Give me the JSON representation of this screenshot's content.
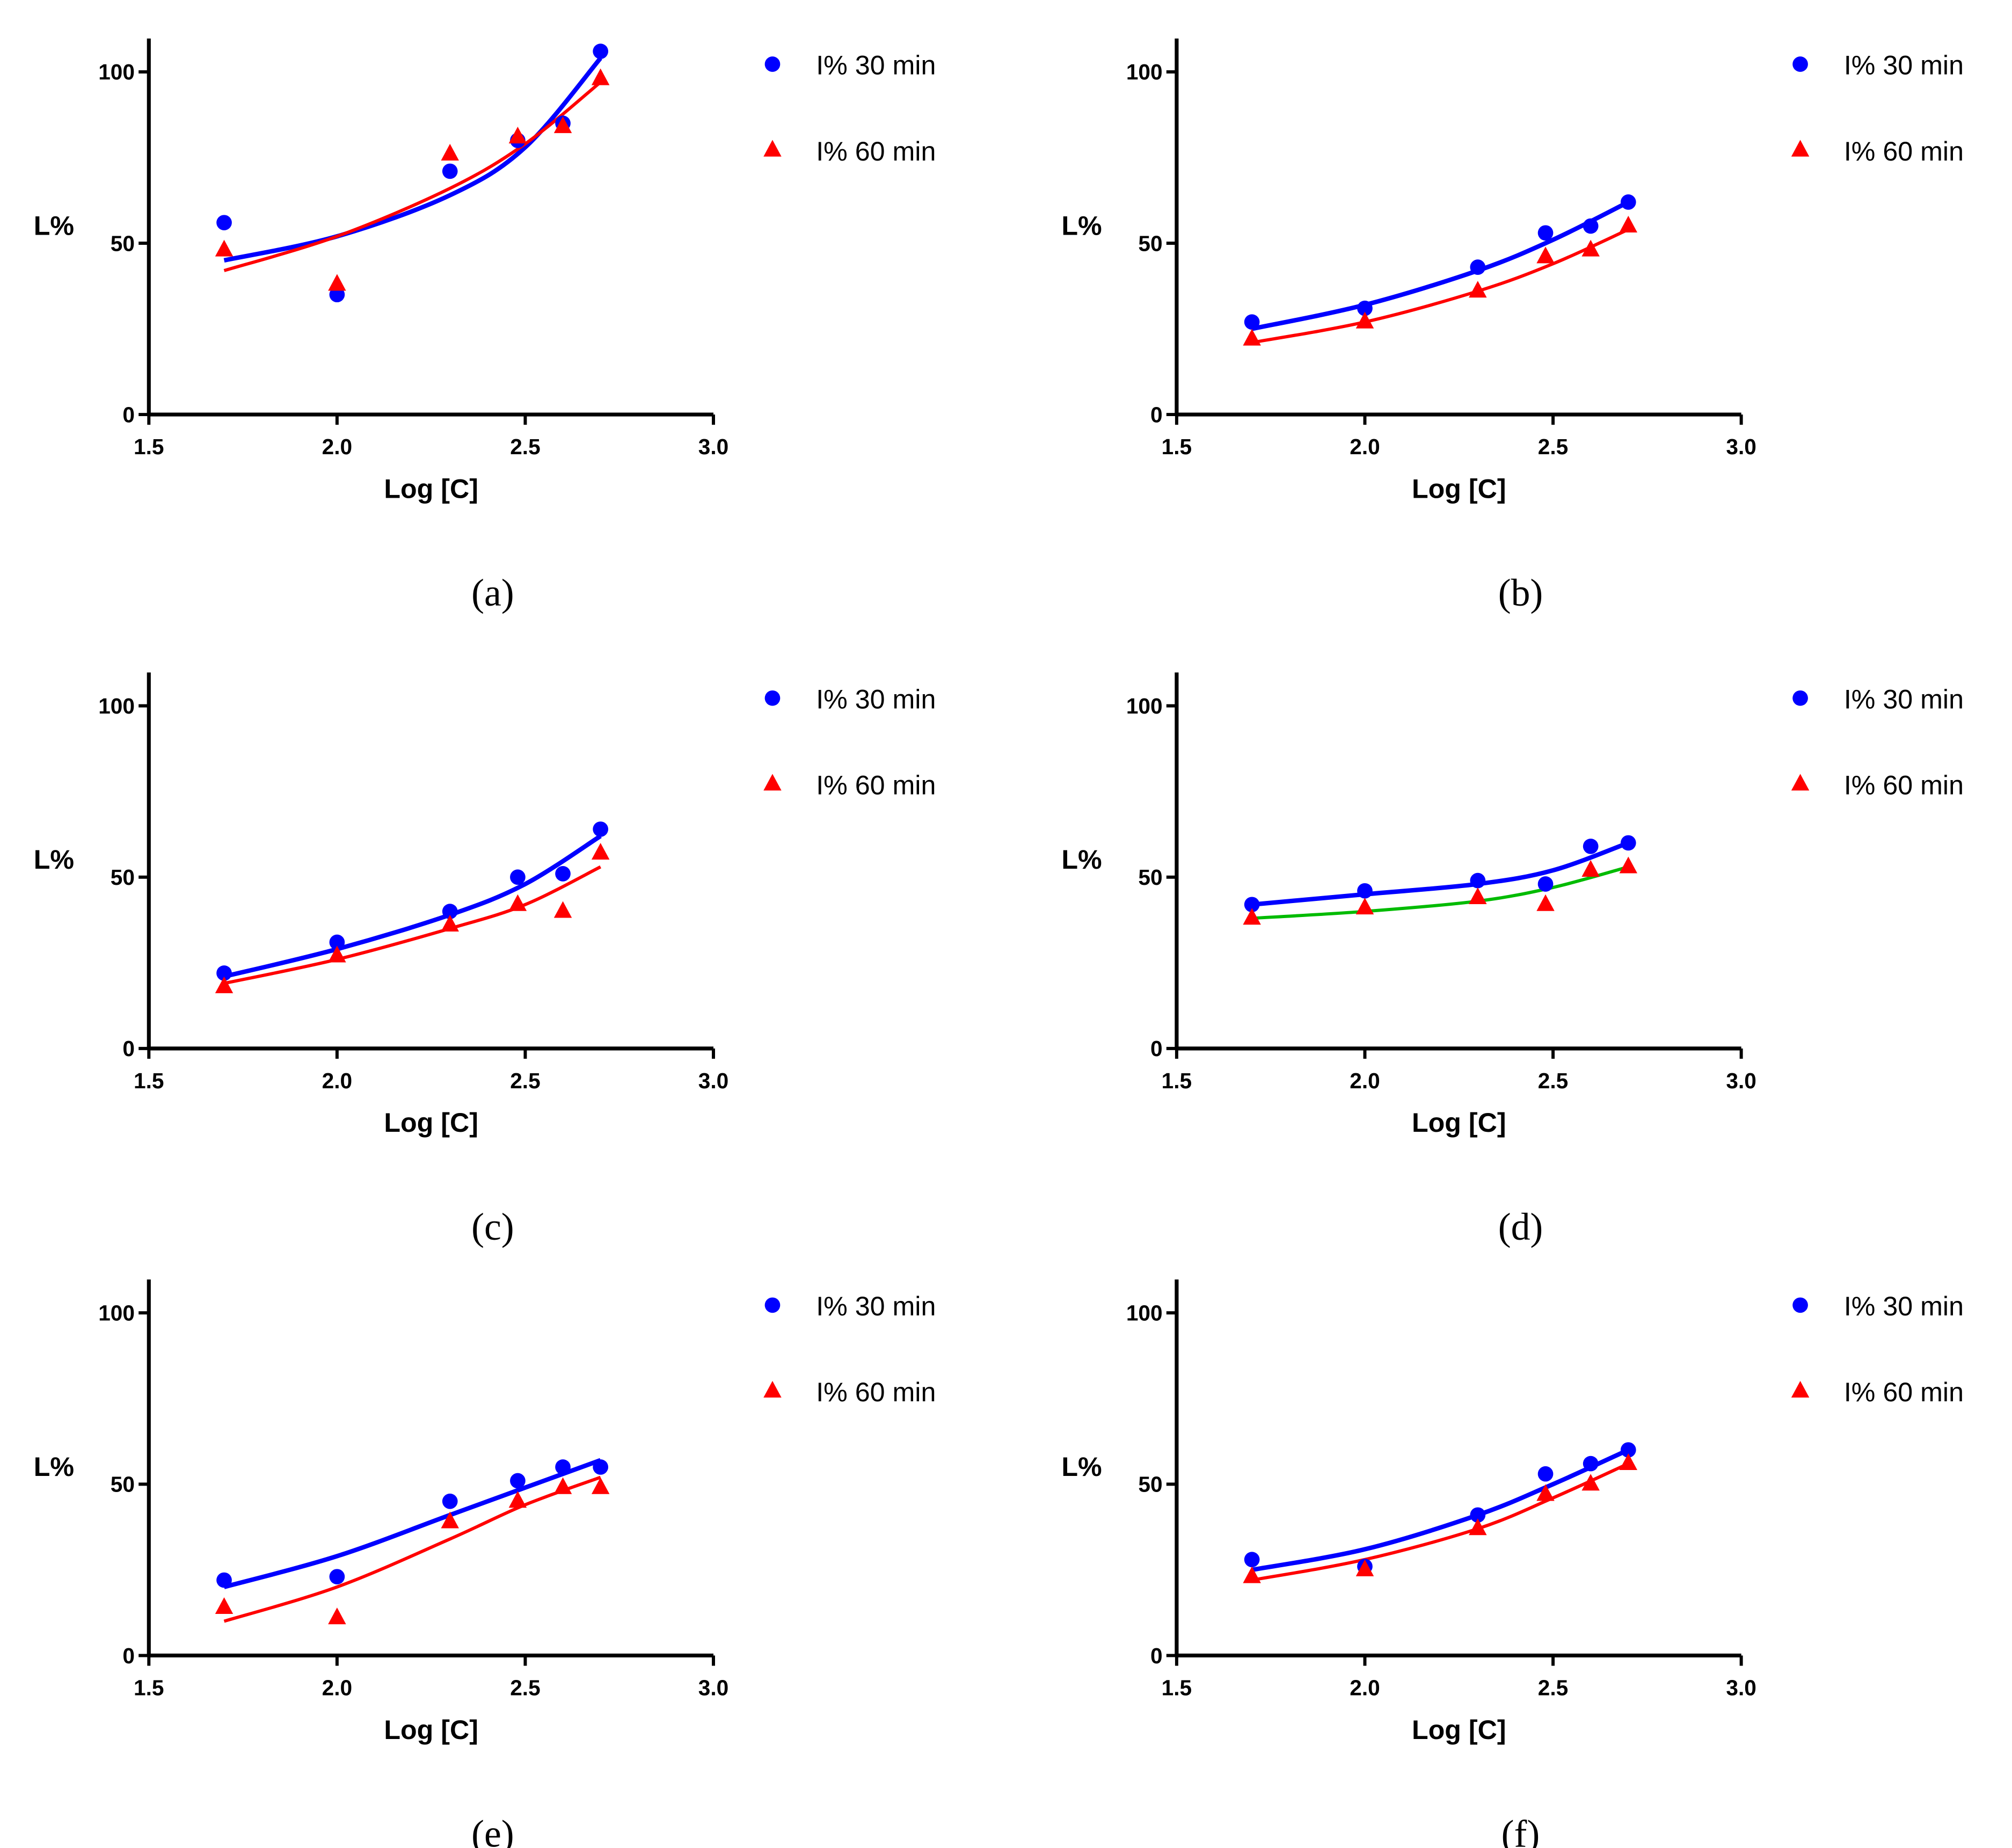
{
  "chart_data": [
    {
      "type": "scatter",
      "caption": "(a)",
      "xlabel": "Log [C]",
      "ylabel": "L%",
      "xlim": [
        1.5,
        3.0
      ],
      "ylim": [
        0,
        110
      ],
      "xticks": [
        "1.5",
        "2.0",
        "2.5",
        "3.0"
      ],
      "yticks": [
        "0",
        "50",
        "100"
      ],
      "legend_position": "top-right",
      "x": [
        1.7,
        2.0,
        2.3,
        2.48,
        2.6,
        2.7
      ],
      "series": [
        {
          "name": "I% 30 min",
          "marker": "circle",
          "color": "#0000FF",
          "values": [
            56,
            35,
            71,
            80,
            85,
            106
          ],
          "fit_color": "#0000FF",
          "fit": [
            [
              1.7,
              45
            ],
            [
              2.0,
              52
            ],
            [
              2.3,
              64
            ],
            [
              2.5,
              78
            ],
            [
              2.7,
              104
            ]
          ]
        },
        {
          "name": "I% 60 min",
          "marker": "triangle",
          "color": "#FF0000",
          "values": [
            48,
            38,
            76,
            81,
            84,
            98
          ],
          "fit_color": "#FF0000",
          "fit": [
            [
              1.7,
              42
            ],
            [
              2.0,
              52
            ],
            [
              2.3,
              66
            ],
            [
              2.5,
              79
            ],
            [
              2.7,
              97
            ]
          ]
        }
      ]
    },
    {
      "type": "scatter",
      "caption": "(b)",
      "xlabel": "Log [C]",
      "ylabel": "L%",
      "xlim": [
        1.5,
        3.0
      ],
      "ylim": [
        0,
        110
      ],
      "xticks": [
        "1.5",
        "2.0",
        "2.5",
        "3.0"
      ],
      "yticks": [
        "0",
        "50",
        "100"
      ],
      "legend_position": "top-right",
      "x": [
        1.7,
        2.0,
        2.3,
        2.48,
        2.6,
        2.7
      ],
      "series": [
        {
          "name": "I% 30 min",
          "marker": "circle",
          "color": "#0000FF",
          "values": [
            27,
            31,
            43,
            53,
            55,
            62
          ],
          "fit_color": "#0000FF",
          "fit": [
            [
              1.7,
              25
            ],
            [
              2.0,
              32
            ],
            [
              2.3,
              42
            ],
            [
              2.5,
              51
            ],
            [
              2.7,
              62
            ]
          ]
        },
        {
          "name": "I% 60 min",
          "marker": "triangle",
          "color": "#FF0000",
          "values": [
            22,
            27,
            36,
            46,
            48,
            55
          ],
          "fit_color": "#FF0000",
          "fit": [
            [
              1.7,
              21
            ],
            [
              2.0,
              27
            ],
            [
              2.3,
              36
            ],
            [
              2.5,
              44
            ],
            [
              2.7,
              54
            ]
          ]
        }
      ]
    },
    {
      "type": "scatter",
      "caption": "(c)",
      "xlabel": "Log [C]",
      "ylabel": "L%",
      "xlim": [
        1.5,
        3.0
      ],
      "ylim": [
        0,
        110
      ],
      "xticks": [
        "1.5",
        "2.0",
        "2.5",
        "3.0"
      ],
      "yticks": [
        "0",
        "50",
        "100"
      ],
      "legend_position": "top-right",
      "x": [
        1.7,
        2.0,
        2.3,
        2.48,
        2.6,
        2.7
      ],
      "series": [
        {
          "name": "I% 30 min",
          "marker": "circle",
          "color": "#0000FF",
          "values": [
            22,
            31,
            40,
            50,
            51,
            64
          ],
          "fit_color": "#0000FF",
          "fit": [
            [
              1.7,
              21
            ],
            [
              2.0,
              29
            ],
            [
              2.3,
              39
            ],
            [
              2.5,
              48
            ],
            [
              2.7,
              62
            ]
          ]
        },
        {
          "name": "I% 60 min",
          "marker": "triangle",
          "color": "#FF0000",
          "values": [
            18,
            27,
            36,
            42,
            40,
            57
          ],
          "fit_color": "#FF0000",
          "fit": [
            [
              1.7,
              19
            ],
            [
              2.0,
              26
            ],
            [
              2.3,
              35
            ],
            [
              2.5,
              42
            ],
            [
              2.7,
              53
            ]
          ]
        }
      ]
    },
    {
      "type": "scatter",
      "caption": "(d)",
      "xlabel": "Log [C]",
      "ylabel": "L%",
      "xlim": [
        1.5,
        3.0
      ],
      "ylim": [
        0,
        110
      ],
      "xticks": [
        "1.5",
        "2.0",
        "2.5",
        "3.0"
      ],
      "yticks": [
        "0",
        "50",
        "100"
      ],
      "legend_position": "top-right",
      "x": [
        1.7,
        2.0,
        2.3,
        2.48,
        2.6,
        2.7
      ],
      "series": [
        {
          "name": "I% 30 min",
          "marker": "circle",
          "color": "#0000FF",
          "values": [
            42,
            46,
            49,
            48,
            59,
            60
          ],
          "fit_color": "#0000FF",
          "fit": [
            [
              1.7,
              42
            ],
            [
              2.0,
              45
            ],
            [
              2.3,
              48
            ],
            [
              2.5,
              52
            ],
            [
              2.7,
              60
            ]
          ]
        },
        {
          "name": "I% 60 min",
          "marker": "triangle",
          "color": "#FF0000",
          "values": [
            38,
            41,
            44,
            42,
            52,
            53
          ],
          "fit_color": "#00BB00",
          "fit": [
            [
              1.7,
              38
            ],
            [
              2.0,
              40
            ],
            [
              2.3,
              43
            ],
            [
              2.5,
              47
            ],
            [
              2.7,
              53
            ]
          ]
        }
      ]
    },
    {
      "type": "scatter",
      "caption": "(e)",
      "xlabel": "Log [C]",
      "ylabel": "L%",
      "xlim": [
        1.5,
        3.0
      ],
      "ylim": [
        0,
        110
      ],
      "xticks": [
        "1.5",
        "2.0",
        "2.5",
        "3.0"
      ],
      "yticks": [
        "0",
        "50",
        "100"
      ],
      "legend_position": "top-right",
      "x": [
        1.7,
        2.0,
        2.3,
        2.48,
        2.6,
        2.7
      ],
      "series": [
        {
          "name": "I% 30 min",
          "marker": "circle",
          "color": "#0000FF",
          "values": [
            22,
            23,
            45,
            51,
            55,
            55
          ],
          "fit_color": "#0000FF",
          "fit": [
            [
              1.7,
              20
            ],
            [
              2.0,
              29
            ],
            [
              2.3,
              41
            ],
            [
              2.5,
              49
            ],
            [
              2.7,
              57
            ]
          ]
        },
        {
          "name": "I% 60 min",
          "marker": "triangle",
          "color": "#FF0000",
          "values": [
            14,
            11,
            39,
            45,
            49,
            49
          ],
          "fit_color": "#FF0000",
          "fit": [
            [
              1.7,
              10
            ],
            [
              2.0,
              20
            ],
            [
              2.3,
              34
            ],
            [
              2.5,
              44
            ],
            [
              2.7,
              52
            ]
          ]
        }
      ]
    },
    {
      "type": "scatter",
      "caption": "(f)",
      "xlabel": "Log [C]",
      "ylabel": "L%",
      "xlim": [
        1.5,
        3.0
      ],
      "ylim": [
        0,
        110
      ],
      "xticks": [
        "1.5",
        "2.0",
        "2.5",
        "3.0"
      ],
      "yticks": [
        "0",
        "50",
        "100"
      ],
      "legend_position": "top-right",
      "x": [
        1.7,
        2.0,
        2.3,
        2.48,
        2.6,
        2.7
      ],
      "series": [
        {
          "name": "I% 30 min",
          "marker": "circle",
          "color": "#0000FF",
          "values": [
            28,
            26,
            41,
            53,
            56,
            60
          ],
          "fit_color": "#0000FF",
          "fit": [
            [
              1.7,
              25
            ],
            [
              2.0,
              31
            ],
            [
              2.3,
              41
            ],
            [
              2.5,
              50
            ],
            [
              2.7,
              60
            ]
          ]
        },
        {
          "name": "I% 60 min",
          "marker": "triangle",
          "color": "#FF0000",
          "values": [
            23,
            25,
            37,
            47,
            50,
            56
          ],
          "fit_color": "#FF0000",
          "fit": [
            [
              1.7,
              22
            ],
            [
              2.0,
              28
            ],
            [
              2.3,
              37
            ],
            [
              2.5,
              46
            ],
            [
              2.7,
              56
            ]
          ]
        }
      ]
    }
  ]
}
